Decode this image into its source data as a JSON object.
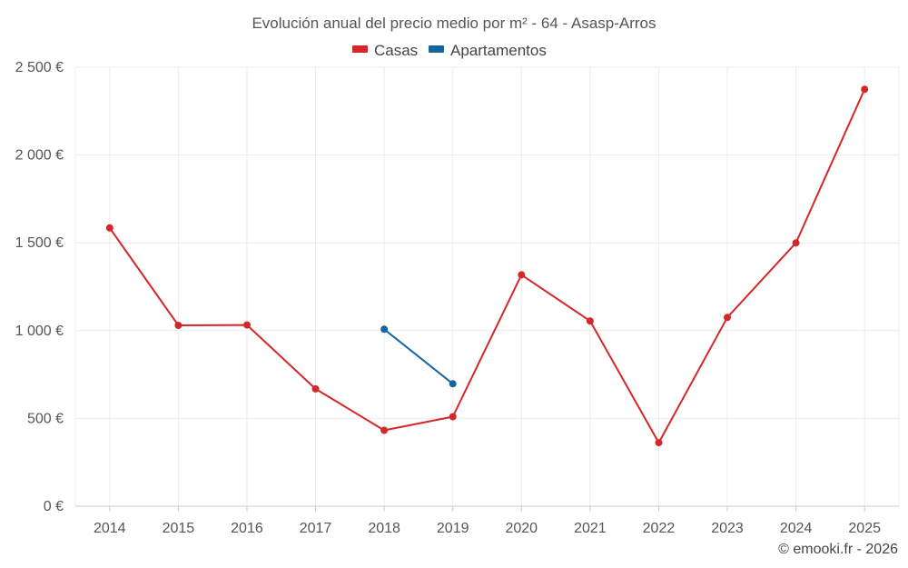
{
  "chart_data": {
    "type": "line",
    "title": "Evolución anual del precio medio por m² - 64 - Asasp-Arros",
    "categories": [
      "2014",
      "2015",
      "2016",
      "2017",
      "2018",
      "2019",
      "2020",
      "2021",
      "2022",
      "2023",
      "2024",
      "2025"
    ],
    "ylim": [
      0,
      2500
    ],
    "y_ticks": [
      0,
      500,
      1000,
      1500,
      2000,
      2500
    ],
    "y_tick_labels": [
      "0 €",
      "500 €",
      "1 000 €",
      "1 500 €",
      "2 000 €",
      "2 500 €"
    ],
    "grid": true,
    "legend_position": "top-center",
    "series": [
      {
        "name": "Casas",
        "color": "#d62728",
        "values": [
          1585,
          1030,
          1032,
          668,
          432,
          510,
          1318,
          1055,
          362,
          1075,
          1500,
          2375
        ]
      },
      {
        "name": "Apartamentos",
        "color": "#1565a0",
        "values": [
          null,
          null,
          null,
          null,
          1008,
          697,
          null,
          null,
          null,
          null,
          null,
          null
        ]
      }
    ]
  },
  "credit": "© emooki.fr - 2026"
}
